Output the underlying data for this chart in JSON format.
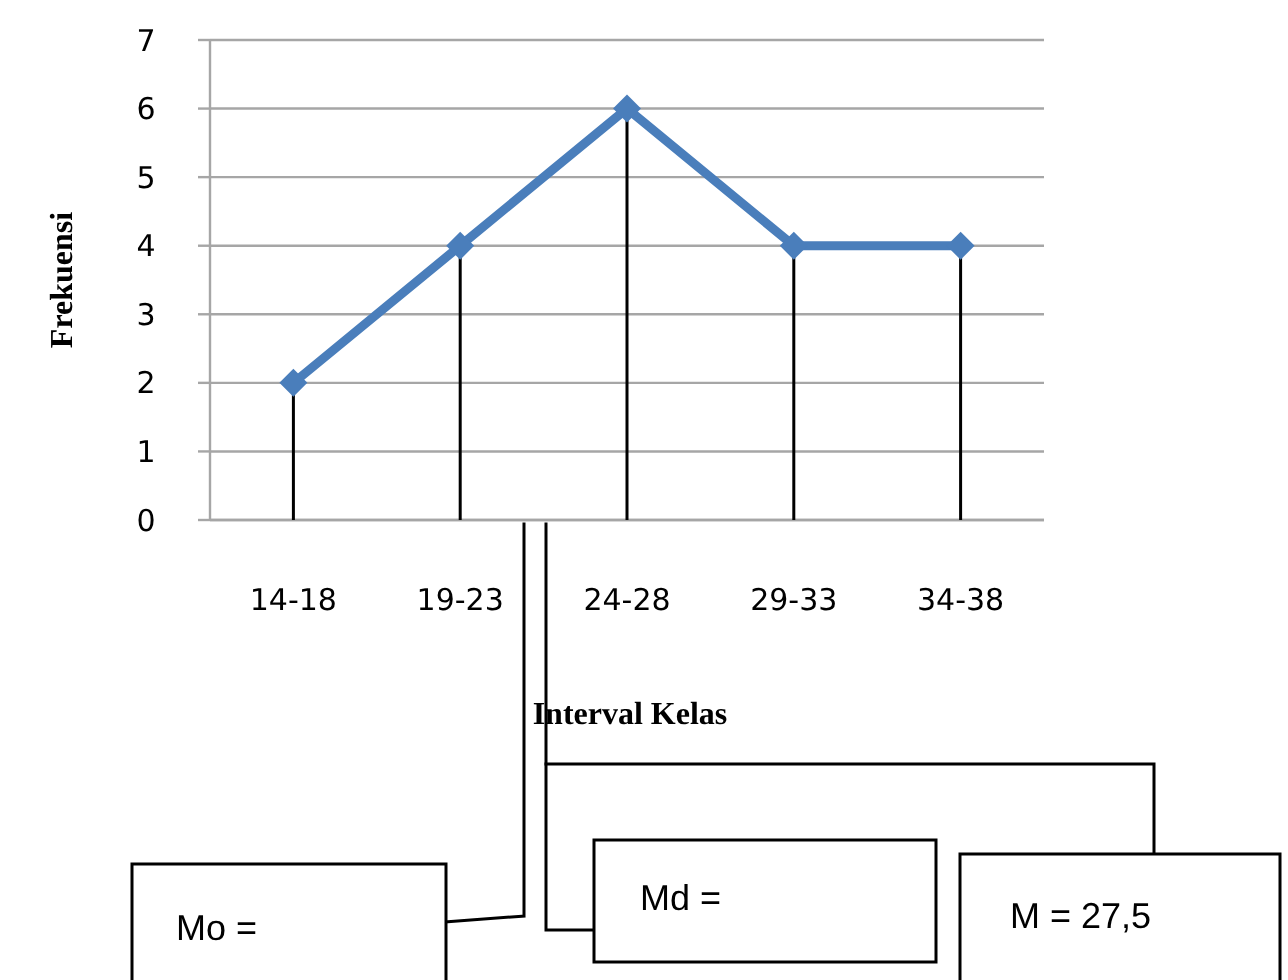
{
  "chart_data": {
    "type": "line",
    "xlabel": "Interval Kelas",
    "ylabel": "Frekuensi",
    "categories": [
      "14-18",
      "19-23",
      "24-28",
      "29-33",
      "34-38"
    ],
    "series": [
      {
        "color": "#4a7ebb",
        "marker": "none",
        "values": [
          2,
          4,
          6,
          4,
          4
        ]
      },
      {
        "type": "lollipop",
        "color": "#4a7ebb",
        "marker": "diamond",
        "values": [
          2,
          4,
          6,
          4,
          4
        ]
      }
    ],
    "ylim": [
      0,
      7
    ],
    "yticks": [
      0,
      1,
      2,
      3,
      4,
      5,
      6,
      7
    ],
    "grid": "y",
    "annotations": [
      "Mo =",
      "Md =",
      "M = 27,5"
    ]
  }
}
